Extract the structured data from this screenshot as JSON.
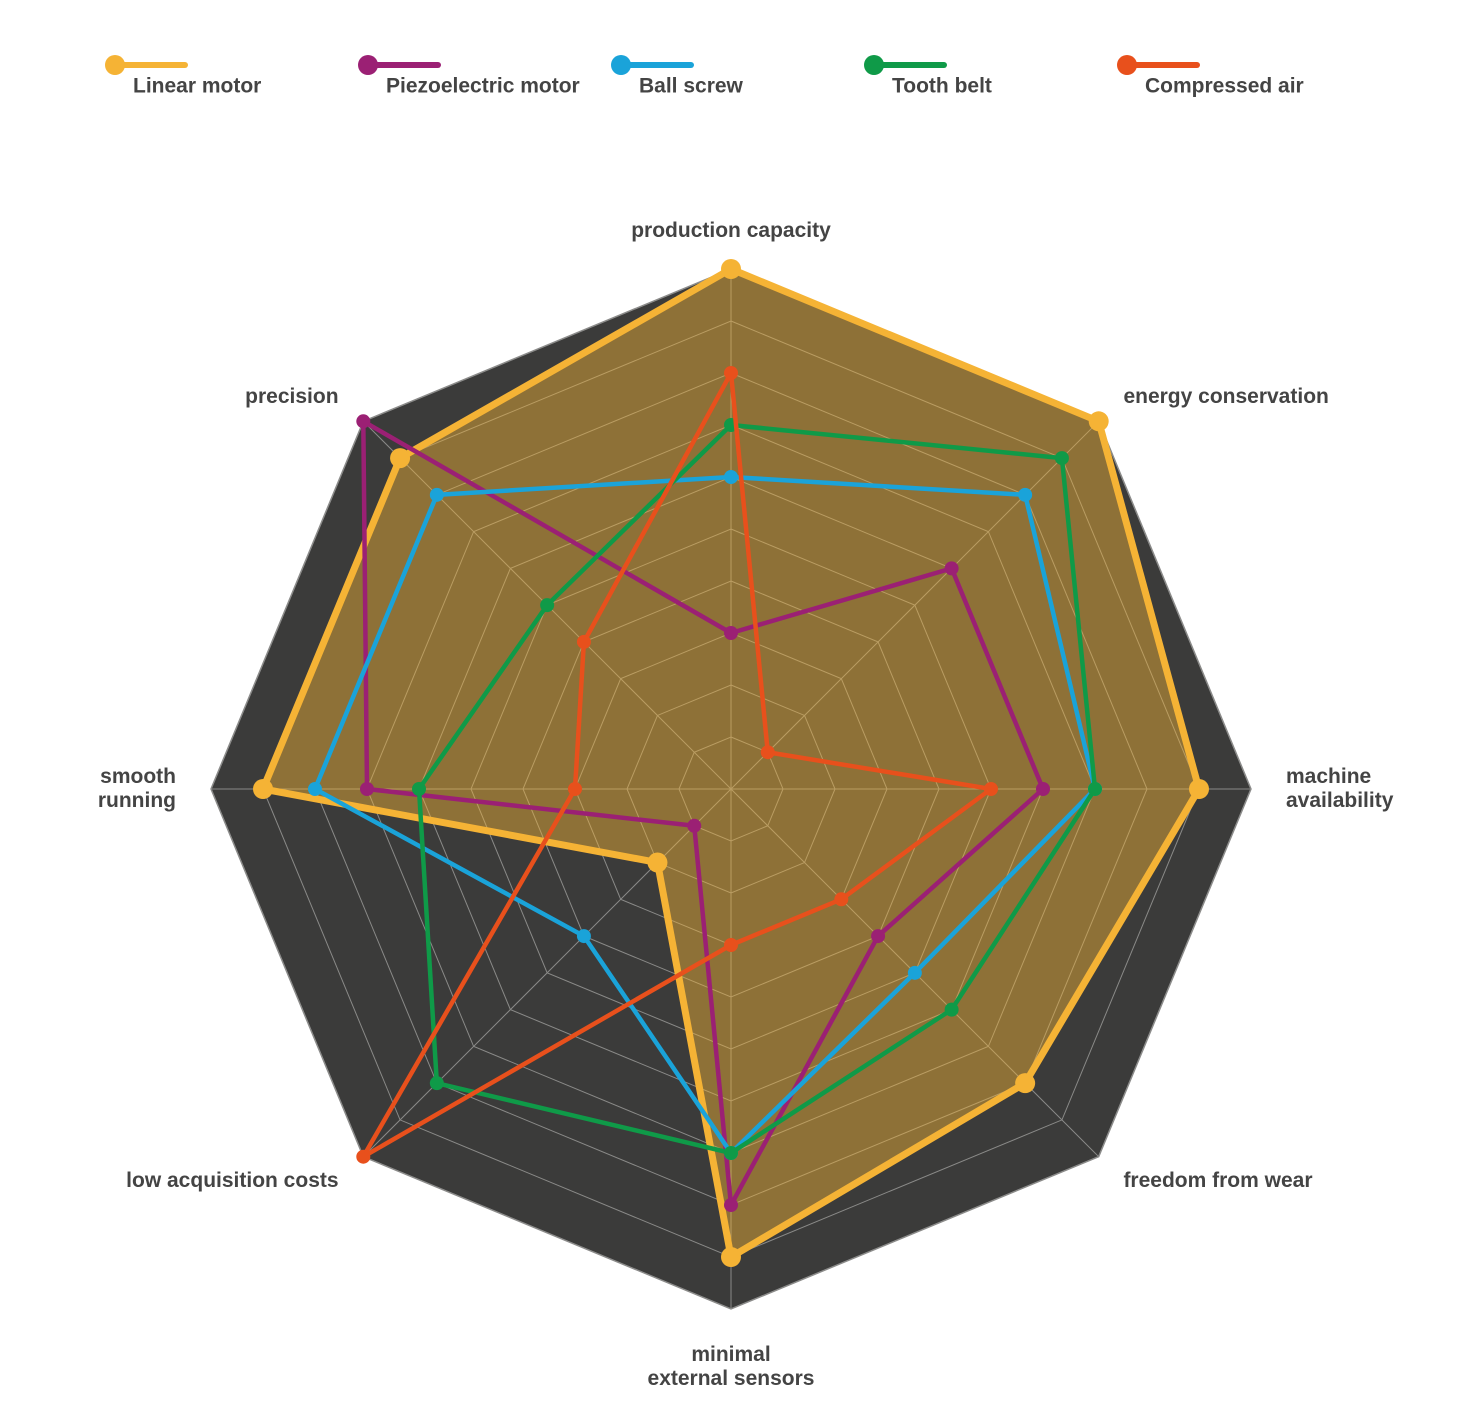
{
  "chart_data": {
    "type": "radar",
    "categories": [
      "production capacity",
      "energy conservation",
      "machine\navailability",
      "freedom from wear",
      "minimal\nexternal sensors",
      "low acquisition costs",
      "smooth\nrunning",
      "precision"
    ],
    "rlim": [
      0,
      10
    ],
    "rticks": [
      1,
      2,
      3,
      4,
      5,
      6,
      7,
      8,
      9,
      10
    ],
    "grid": true,
    "background": "#3b3b3a",
    "legend": "top",
    "series": [
      {
        "name": "Linear motor",
        "color": "#f5b335",
        "fill": true,
        "values": [
          10,
          10,
          9,
          8,
          9,
          2,
          9,
          9
        ]
      },
      {
        "name": "Piezoelectric motor",
        "color": "#9b2074",
        "values": [
          3,
          6,
          6,
          4,
          8,
          1,
          7,
          10
        ]
      },
      {
        "name": "Ball screw",
        "color": "#1aa3d9",
        "values": [
          6,
          8,
          7,
          5,
          7,
          4,
          8,
          8
        ]
      },
      {
        "name": "Tooth belt",
        "color": "#0f9a48",
        "values": [
          7,
          9,
          7,
          6,
          7,
          8,
          6,
          5
        ]
      },
      {
        "name": "Compressed air",
        "color": "#e8501c",
        "values": [
          8,
          1,
          5,
          3,
          3,
          10,
          3,
          4
        ]
      }
    ]
  }
}
